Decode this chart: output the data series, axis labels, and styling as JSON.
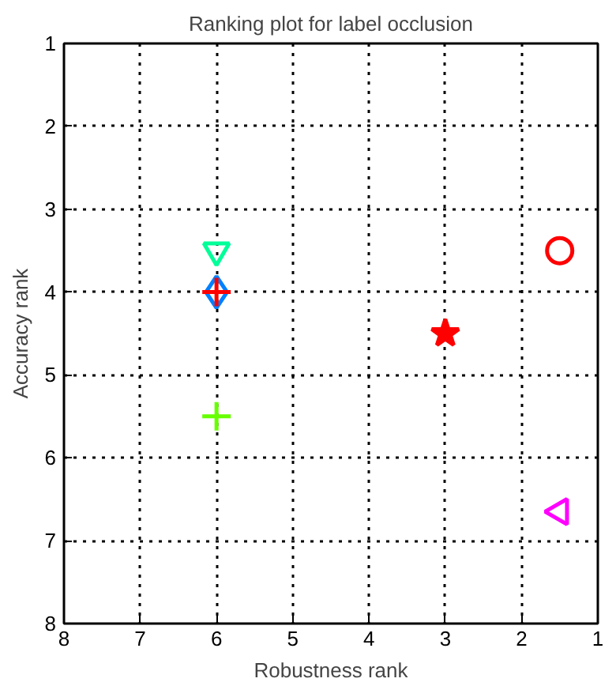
{
  "chart_data": {
    "type": "scatter",
    "title": "Ranking plot for label occlusion",
    "xlabel": "Robustness rank",
    "ylabel": "Accuracy rank",
    "xlim": [
      8,
      1
    ],
    "ylim": [
      8,
      1
    ],
    "xticks": [
      1,
      2,
      3,
      4,
      5,
      6,
      7,
      8
    ],
    "yticks": [
      1,
      2,
      3,
      4,
      5,
      6,
      7,
      8
    ],
    "grid": true,
    "line_style": "dotted",
    "series": [
      {
        "color": "#ff0000",
        "marker": "circle",
        "x": [
          1.5
        ],
        "values": [
          3.5
        ]
      },
      {
        "color": "#ff0000",
        "marker": "star",
        "x": [
          3
        ],
        "values": [
          4.5
        ]
      },
      {
        "color": "#00ff99",
        "marker": "triangle_down",
        "x": [
          6
        ],
        "values": [
          3.5
        ]
      },
      {
        "color": "#0080ff",
        "marker": "diamond",
        "x": [
          6
        ],
        "values": [
          4
        ]
      },
      {
        "color": "#ff0000",
        "marker": "cross",
        "x": [
          6
        ],
        "values": [
          4
        ]
      },
      {
        "color": "#66ff00",
        "marker": "cross",
        "x": [
          6
        ],
        "values": [
          5.5
        ]
      },
      {
        "color": "#ff00ff",
        "marker": "triangle_left",
        "x": [
          1.5
        ],
        "values": [
          6.65
        ]
      }
    ]
  }
}
